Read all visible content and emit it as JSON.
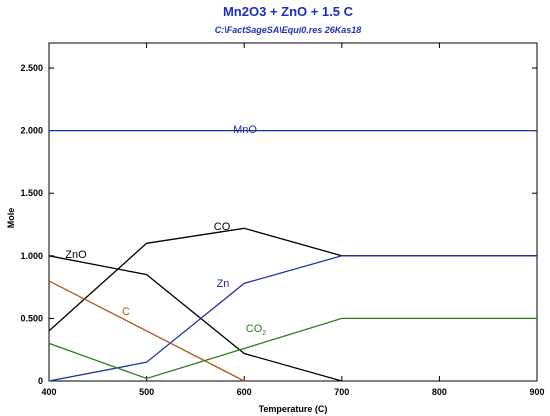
{
  "header": {
    "title": "Mn2O3  +  ZnO  +  1.5 C",
    "subtitle": "C:\\FactSageSA\\Equi0.res  26Kas18"
  },
  "chart_data": {
    "type": "line",
    "xlabel": "Temperature (C)",
    "ylabel": "Mole",
    "xlim": [
      400,
      900
    ],
    "ylim": [
      0,
      2.7
    ],
    "x_ticks": [
      400,
      500,
      600,
      700,
      800,
      900
    ],
    "x_tick_labels": [
      "400",
      "500",
      "600",
      "700",
      "800",
      "900"
    ],
    "y_ticks": [
      0,
      0.5,
      1.0,
      1.5,
      2.0,
      2.5
    ],
    "y_tick_labels": [
      "0",
      "0.500",
      "1.000",
      "1.500",
      "2.000",
      "2.500"
    ],
    "grid": false,
    "series": [
      {
        "name": "MnO",
        "label": "MnO",
        "color": "#1f2fa8",
        "x": [
          400,
          900
        ],
        "y": [
          2.0,
          2.0
        ]
      },
      {
        "name": "CO",
        "label": "CO",
        "color": "#000000",
        "x": [
          400,
          500,
          600,
          700,
          900
        ],
        "y": [
          0.4,
          1.1,
          1.22,
          1.0,
          1.0
        ]
      },
      {
        "name": "ZnO",
        "label": "ZnO",
        "color": "#000000",
        "x": [
          400,
          500,
          600,
          700
        ],
        "y": [
          1.0,
          0.85,
          0.22,
          0.0
        ]
      },
      {
        "name": "Zn",
        "label": "Zn",
        "color": "#1f2fa8",
        "x": [
          400,
          500,
          600,
          700,
          900
        ],
        "y": [
          0.0,
          0.15,
          0.78,
          1.0,
          1.0
        ]
      },
      {
        "name": "C",
        "label": "C",
        "color": "#b5561e",
        "x": [
          400,
          600
        ],
        "y": [
          0.8,
          0.0
        ]
      },
      {
        "name": "CO2",
        "label": "CO",
        "label_sub": "2",
        "color": "#2e7d1f",
        "x": [
          400,
          500,
          600,
          700,
          900
        ],
        "y": [
          0.3,
          0.02,
          0.26,
          0.5,
          0.5
        ]
      }
    ]
  }
}
